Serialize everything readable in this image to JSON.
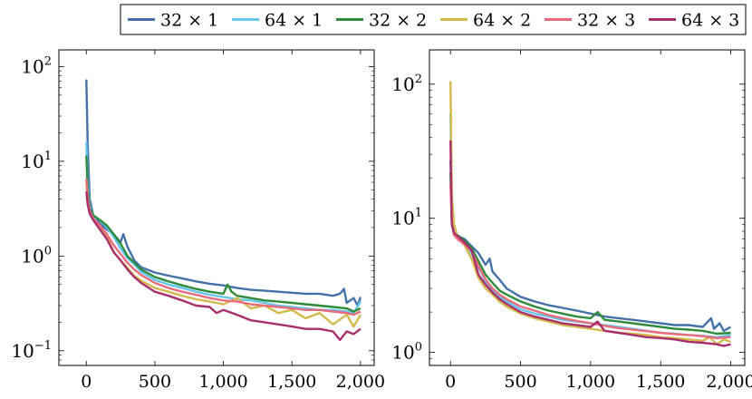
{
  "chart_data": [
    {
      "type": "line",
      "title": "",
      "xlabel": "",
      "ylabel": "",
      "yscale": "log",
      "xlim": [
        -200,
        2100
      ],
      "ylim": [
        0.07,
        150
      ],
      "xticks": [
        0,
        500,
        1000,
        1500,
        2000
      ],
      "xtick_labels": [
        "0",
        "500",
        "1,000",
        "1,500",
        "2,000"
      ],
      "yticks": [
        0.1,
        1,
        10,
        100
      ],
      "ytick_mantissa": "10",
      "ytick_exponents": [
        "−1",
        "0",
        "1",
        "2"
      ],
      "grid": false,
      "legend": "top-center",
      "series": [
        {
          "name": "32 × 1",
          "color": "#4472a8",
          "x": [
            0,
            10,
            25,
            50,
            100,
            150,
            200,
            250,
            270,
            300,
            350,
            400,
            500,
            600,
            700,
            800,
            900,
            1000,
            1100,
            1200,
            1300,
            1400,
            1500,
            1600,
            1700,
            1800,
            1850,
            1880,
            1900,
            1950,
            1980,
            2000
          ],
          "y": [
            73,
            15,
            4.0,
            2.7,
            2.2,
            1.9,
            1.7,
            1.4,
            1.7,
            1.25,
            0.9,
            0.76,
            0.67,
            0.62,
            0.58,
            0.54,
            0.51,
            0.49,
            0.46,
            0.44,
            0.43,
            0.42,
            0.41,
            0.4,
            0.4,
            0.38,
            0.4,
            0.45,
            0.32,
            0.36,
            0.3,
            0.37
          ]
        },
        {
          "name": "64 × 1",
          "color": "#65c5ec",
          "x": [
            0,
            10,
            25,
            50,
            100,
            150,
            200,
            250,
            300,
            350,
            400,
            500,
            600,
            700,
            800,
            900,
            1000,
            1100,
            1200,
            1300,
            1400,
            1500,
            1600,
            1700,
            1800,
            1900,
            1950,
            2000
          ],
          "y": [
            16,
            6,
            3.4,
            2.6,
            2.4,
            2.0,
            1.6,
            1.2,
            0.95,
            0.82,
            0.68,
            0.56,
            0.5,
            0.46,
            0.42,
            0.39,
            0.37,
            0.35,
            0.34,
            0.32,
            0.3,
            0.29,
            0.28,
            0.27,
            0.27,
            0.26,
            0.25,
            0.33
          ]
        },
        {
          "name": "32 × 2",
          "color": "#2e8b3a",
          "x": [
            0,
            10,
            25,
            50,
            100,
            150,
            200,
            250,
            300,
            350,
            400,
            500,
            600,
            700,
            800,
            900,
            1000,
            1030,
            1060,
            1100,
            1200,
            1300,
            1400,
            1500,
            1600,
            1700,
            1800,
            1900,
            1950,
            2000
          ],
          "y": [
            11.5,
            5,
            3.2,
            2.7,
            2.4,
            2.1,
            1.7,
            1.35,
            1.0,
            0.85,
            0.72,
            0.6,
            0.54,
            0.49,
            0.45,
            0.42,
            0.4,
            0.5,
            0.42,
            0.38,
            0.36,
            0.34,
            0.33,
            0.32,
            0.31,
            0.3,
            0.29,
            0.28,
            0.26,
            0.28
          ]
        },
        {
          "name": "64 × 2",
          "color": "#d2ba4c",
          "x": [
            0,
            10,
            25,
            50,
            100,
            150,
            200,
            250,
            300,
            350,
            400,
            500,
            600,
            700,
            800,
            900,
            1000,
            1100,
            1200,
            1300,
            1400,
            1500,
            1600,
            1700,
            1800,
            1900,
            1950,
            2000
          ],
          "y": [
            6,
            4,
            3.0,
            2.5,
            2.1,
            1.6,
            1.1,
            0.9,
            0.75,
            0.62,
            0.55,
            0.46,
            0.42,
            0.38,
            0.35,
            0.33,
            0.31,
            0.36,
            0.28,
            0.3,
            0.25,
            0.27,
            0.22,
            0.25,
            0.19,
            0.24,
            0.18,
            0.24
          ]
        },
        {
          "name": "32 × 3",
          "color": "#ea6b7b",
          "x": [
            0,
            10,
            25,
            50,
            100,
            150,
            200,
            250,
            300,
            350,
            400,
            500,
            600,
            700,
            800,
            900,
            1000,
            1100,
            1200,
            1300,
            1400,
            1500,
            1600,
            1700,
            1800,
            1900,
            1950,
            2000
          ],
          "y": [
            6.5,
            4.2,
            3.0,
            2.5,
            2.1,
            1.7,
            1.3,
            1.05,
            0.85,
            0.72,
            0.63,
            0.52,
            0.46,
            0.42,
            0.39,
            0.36,
            0.34,
            0.33,
            0.31,
            0.3,
            0.29,
            0.28,
            0.27,
            0.27,
            0.26,
            0.25,
            0.24,
            0.26
          ]
        },
        {
          "name": "64 × 3",
          "color": "#a8306e",
          "x": [
            0,
            10,
            25,
            50,
            100,
            150,
            200,
            250,
            300,
            350,
            400,
            500,
            600,
            700,
            800,
            900,
            950,
            1000,
            1100,
            1200,
            1300,
            1400,
            1500,
            1600,
            1700,
            1800,
            1850,
            1900,
            1950,
            2000
          ],
          "y": [
            4.8,
            3.5,
            2.8,
            2.4,
            1.9,
            1.5,
            1.1,
            0.9,
            0.72,
            0.6,
            0.52,
            0.42,
            0.38,
            0.34,
            0.3,
            0.29,
            0.25,
            0.27,
            0.24,
            0.21,
            0.2,
            0.19,
            0.18,
            0.17,
            0.17,
            0.16,
            0.13,
            0.16,
            0.15,
            0.17
          ]
        }
      ]
    },
    {
      "type": "line",
      "title": "",
      "xlabel": "",
      "ylabel": "",
      "yscale": "log",
      "xlim": [
        -150,
        2100
      ],
      "ylim": [
        0.8,
        180
      ],
      "xticks": [
        0,
        500,
        1000,
        1500,
        2000
      ],
      "xtick_labels": [
        "0",
        "500",
        "1,000",
        "1,500",
        "2,000"
      ],
      "yticks": [
        1,
        10,
        100
      ],
      "ytick_mantissa": "10",
      "ytick_exponents": [
        "0",
        "1",
        "2"
      ],
      "grid": false,
      "series": [
        {
          "name": "32 × 1",
          "color": "#4472a8",
          "x": [
            0,
            10,
            25,
            50,
            100,
            150,
            200,
            250,
            280,
            300,
            350,
            400,
            500,
            600,
            700,
            800,
            900,
            1000,
            1100,
            1200,
            1300,
            1400,
            1500,
            1600,
            1700,
            1800,
            1860,
            1880,
            1920,
            1950,
            2000
          ],
          "y": [
            27,
            10,
            8,
            7.4,
            7.0,
            6.2,
            5.5,
            4.5,
            5.0,
            4.0,
            3.5,
            3.0,
            2.6,
            2.4,
            2.25,
            2.15,
            2.05,
            1.95,
            1.85,
            1.8,
            1.75,
            1.7,
            1.65,
            1.6,
            1.6,
            1.55,
            1.8,
            1.5,
            1.65,
            1.45,
            1.55
          ]
        },
        {
          "name": "64 × 1",
          "color": "#65c5ec",
          "x": [
            0,
            10,
            25,
            50,
            100,
            150,
            200,
            250,
            300,
            350,
            400,
            500,
            600,
            700,
            800,
            900,
            1000,
            1100,
            1200,
            1300,
            1400,
            1500,
            1600,
            1700,
            1800,
            1900,
            2000
          ],
          "y": [
            60,
            12,
            8.5,
            7.2,
            6.5,
            5.5,
            4.3,
            3.4,
            2.9,
            2.6,
            2.4,
            2.1,
            1.95,
            1.85,
            1.75,
            1.7,
            1.65,
            1.6,
            1.55,
            1.5,
            1.45,
            1.4,
            1.38,
            1.35,
            1.33,
            1.3,
            1.35
          ]
        },
        {
          "name": "32 × 2",
          "color": "#2e8b3a",
          "x": [
            0,
            10,
            25,
            50,
            100,
            150,
            200,
            250,
            300,
            350,
            400,
            500,
            600,
            700,
            800,
            900,
            1000,
            1050,
            1100,
            1200,
            1300,
            1400,
            1500,
            1600,
            1700,
            1800,
            1900,
            2000
          ],
          "y": [
            22,
            9,
            7.8,
            7.5,
            6.8,
            6.0,
            4.8,
            3.8,
            3.3,
            2.9,
            2.7,
            2.4,
            2.2,
            2.05,
            1.95,
            1.85,
            1.8,
            2.0,
            1.75,
            1.7,
            1.65,
            1.6,
            1.55,
            1.5,
            1.48,
            1.45,
            1.38,
            1.4
          ]
        },
        {
          "name": "64 × 2",
          "color": "#d2ba4c",
          "x": [
            0,
            10,
            25,
            50,
            100,
            150,
            200,
            250,
            300,
            350,
            400,
            500,
            600,
            700,
            800,
            900,
            1000,
            1100,
            1200,
            1300,
            1400,
            1500,
            1600,
            1700,
            1800,
            1850,
            1900,
            1950,
            2000
          ],
          "y": [
            105,
            15,
            9,
            7.3,
            6.3,
            5.0,
            3.6,
            3.0,
            2.7,
            2.4,
            2.2,
            1.95,
            1.8,
            1.7,
            1.6,
            1.55,
            1.5,
            1.45,
            1.4,
            1.38,
            1.35,
            1.3,
            1.28,
            1.25,
            1.22,
            1.3,
            1.15,
            1.25,
            1.2
          ]
        },
        {
          "name": "32 × 3",
          "color": "#ea6b7b",
          "x": [
            0,
            10,
            25,
            50,
            100,
            150,
            200,
            250,
            300,
            350,
            400,
            500,
            600,
            700,
            800,
            900,
            1000,
            1100,
            1200,
            1300,
            1400,
            1500,
            1600,
            1700,
            1800,
            1900,
            2000
          ],
          "y": [
            18,
            9,
            7.5,
            7.0,
            6.4,
            5.7,
            4.4,
            3.5,
            3.0,
            2.7,
            2.5,
            2.2,
            2.05,
            1.9,
            1.8,
            1.72,
            1.65,
            1.58,
            1.52,
            1.48,
            1.44,
            1.4,
            1.37,
            1.35,
            1.32,
            1.28,
            1.3
          ]
        },
        {
          "name": "64 × 3",
          "color": "#a8306e",
          "x": [
            0,
            10,
            25,
            50,
            100,
            150,
            200,
            250,
            300,
            350,
            400,
            500,
            600,
            700,
            800,
            900,
            1000,
            1050,
            1100,
            1200,
            1300,
            1400,
            1500,
            1600,
            1700,
            1800,
            1900,
            1950,
            2000
          ],
          "y": [
            38,
            9,
            7.8,
            7.4,
            6.6,
            5.8,
            3.8,
            3.2,
            2.8,
            2.5,
            2.3,
            2.0,
            1.85,
            1.75,
            1.65,
            1.6,
            1.55,
            1.7,
            1.45,
            1.4,
            1.35,
            1.3,
            1.28,
            1.25,
            1.2,
            1.18,
            1.15,
            1.12,
            1.15
          ]
        }
      ]
    }
  ]
}
